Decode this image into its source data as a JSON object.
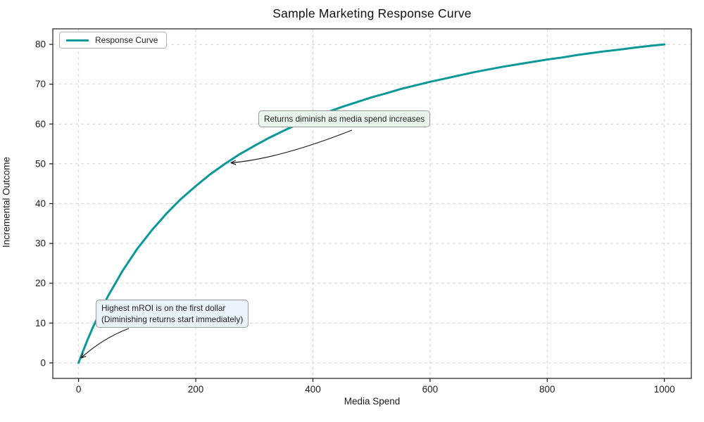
{
  "chart_data": {
    "type": "line",
    "title": "Sample Marketing Response Curve",
    "xlabel": "Media Spend",
    "ylabel": "Incremental Outcome",
    "xlim": [
      -44,
      1046
    ],
    "ylim": [
      -3.9,
      83.9
    ],
    "grid": true,
    "grid_style": "dashed",
    "grid_color": "#d4d4d4",
    "x_ticks": [
      0,
      200,
      400,
      600,
      800,
      1000
    ],
    "x_tick_labels": [
      "0",
      "200",
      "400",
      "600",
      "800",
      "1000"
    ],
    "y_ticks": [
      0,
      10,
      20,
      30,
      40,
      50,
      60,
      70,
      80
    ],
    "y_tick_labels": [
      "0",
      "10",
      "20",
      "30",
      "40",
      "50",
      "60",
      "70",
      "80"
    ],
    "legend": {
      "position": "upper left",
      "entries": [
        {
          "label": "Response Curve",
          "color": "#0c9898"
        }
      ]
    },
    "series": [
      {
        "name": "Response Curve",
        "color": "#0c9898",
        "x": [
          0,
          5,
          10,
          15,
          20,
          25,
          50,
          75,
          100,
          125,
          150,
          175,
          200,
          225,
          250,
          275,
          300,
          325,
          350,
          375,
          400,
          425,
          450,
          475,
          500,
          525,
          550,
          575,
          600,
          625,
          650,
          675,
          700,
          725,
          750,
          775,
          800,
          825,
          850,
          875,
          900,
          925,
          950,
          975,
          1000
        ],
        "y": [
          0,
          2.0,
          3.8,
          5.7,
          7.4,
          9.1,
          16.7,
          23.1,
          28.6,
          33.3,
          37.5,
          41.2,
          44.4,
          47.4,
          50.0,
          52.4,
          54.5,
          56.5,
          58.3,
          60.0,
          61.5,
          63.0,
          64.3,
          65.5,
          66.7,
          67.7,
          68.8,
          69.7,
          70.6,
          71.4,
          72.2,
          73.0,
          73.7,
          74.4,
          75.0,
          75.6,
          76.2,
          76.7,
          77.3,
          77.8,
          78.3,
          78.7,
          79.2,
          79.6,
          80.0
        ]
      }
    ],
    "annotations": [
      {
        "text": "Returns diminish as media spend increases",
        "xy": [
          250,
          50
        ],
        "xytext": [
          310,
          60
        ],
        "box_color": "#e9f6ee"
      },
      {
        "line1": "Highest mROI is on the first dollar",
        "line2": "(Diminishing returns start immediately)",
        "xy": [
          0,
          0
        ],
        "xytext": [
          30,
          12
        ],
        "box_color": "#eaf2fb"
      }
    ]
  }
}
